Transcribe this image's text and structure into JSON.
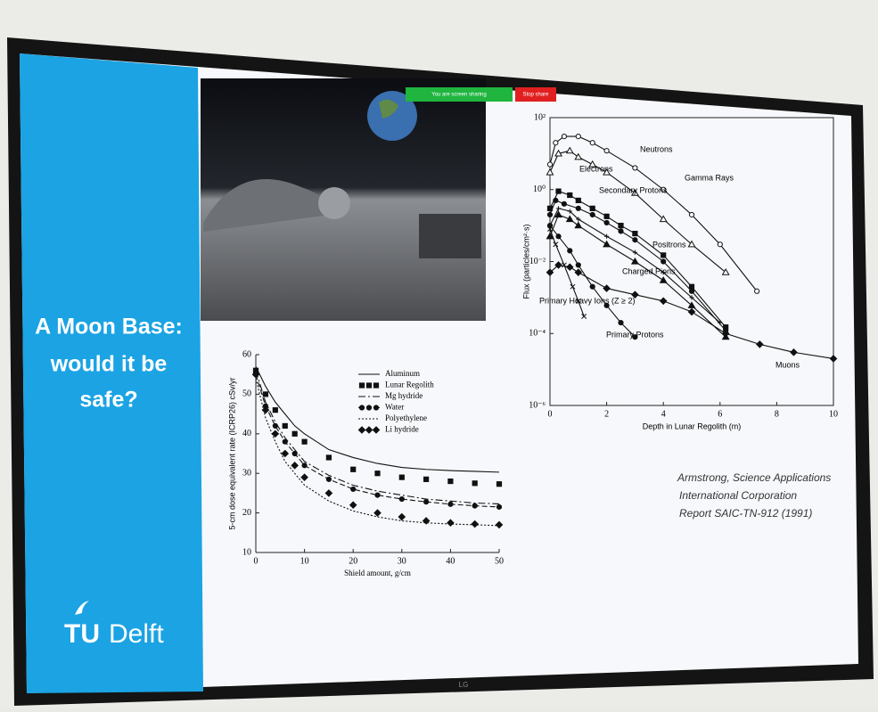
{
  "slide": {
    "title_lines": [
      "A Moon Base:",
      "would it be",
      "safe?"
    ],
    "logo": {
      "tu": "TU",
      "delft": "Delft"
    },
    "citation_lines": [
      "Armstrong, Science Applications",
      "International Corporation",
      "Report SAIC-TN-912 (1991)"
    ],
    "share_bar": {
      "status": "You are screen sharing",
      "stop": "Stop share"
    },
    "tv_brand": "LG"
  },
  "chart_data": [
    {
      "type": "line",
      "ylabel": "5-cm dose equivalent rate (ICRP26) cSv/yr",
      "xlabel": "Shield amount, g/cm",
      "x": [
        0,
        2,
        4,
        6,
        8,
        10,
        15,
        20,
        25,
        30,
        35,
        40,
        45,
        50
      ],
      "xlim": [
        0,
        50
      ],
      "xticks": [
        0,
        10,
        20,
        30,
        40,
        50
      ],
      "ylim": [
        10,
        60
      ],
      "yticks": [
        10,
        20,
        30,
        40,
        50,
        60
      ],
      "series": [
        {
          "name": "Aluminum",
          "color": "#111111",
          "dash": "solid",
          "marker": "none",
          "values": [
            57,
            52,
            48,
            45,
            42,
            40,
            36,
            34,
            32.5,
            31.5,
            31,
            30.7,
            30.5,
            30.3
          ]
        },
        {
          "name": "Lunar Regolith",
          "color": "#111111",
          "dash": "none",
          "marker": "square",
          "values": [
            56,
            50,
            46,
            42,
            40,
            38,
            34,
            31,
            30,
            29,
            28.5,
            28,
            27.5,
            27.3
          ]
        },
        {
          "name": "Mg hydride",
          "color": "#111111",
          "dash": "dashdot",
          "marker": "none",
          "values": [
            56,
            48,
            43,
            39,
            36,
            33,
            29.5,
            27,
            25.5,
            24.5,
            23.5,
            23,
            22.5,
            22.3
          ]
        },
        {
          "name": "Water",
          "color": "#111111",
          "dash": "dashed",
          "marker": "circle",
          "values": [
            55,
            47,
            42,
            38,
            35,
            32,
            28.5,
            26,
            24.5,
            23.5,
            22.8,
            22.2,
            21.8,
            21.5
          ]
        },
        {
          "name": "Polyethylene",
          "color": "#111111",
          "dash": "dotted",
          "marker": "none",
          "values": [
            54,
            44,
            38,
            33,
            30,
            27,
            23,
            20.5,
            19,
            18,
            17.5,
            17.2,
            17,
            16.8
          ]
        },
        {
          "name": "Li hydride",
          "color": "#111111",
          "dash": "none",
          "marker": "diamond",
          "values": [
            55,
            46,
            40,
            35,
            32,
            29,
            25,
            22,
            20,
            19,
            18,
            17.5,
            17.2,
            17
          ]
        }
      ]
    },
    {
      "type": "line",
      "log_y": true,
      "ylabel": "Flux (particles/cm²·s)",
      "xlabel": "Depth in Lunar Regolith (m)",
      "xlim": [
        0,
        10
      ],
      "xticks": [
        0,
        2,
        4,
        6,
        8,
        10
      ],
      "ylim": [
        1e-06,
        100
      ],
      "yticks": [
        {
          "value": 100,
          "label": "10²"
        },
        {
          "value": 1,
          "label": "10⁰"
        },
        {
          "value": 0.01,
          "label": "10⁻²"
        },
        {
          "value": 0.0001,
          "label": "10⁻⁴"
        },
        {
          "value": 1e-06,
          "label": "10⁻⁶"
        }
      ],
      "series": [
        {
          "name": "Neutrons",
          "color": "#111111",
          "marker": "circle-open",
          "x": [
            0,
            0.2,
            0.5,
            1,
            1.5,
            2,
            3,
            4,
            5,
            6,
            7.3
          ],
          "values": [
            5,
            20,
            30,
            30,
            20,
            12,
            4,
            1,
            0.2,
            0.03,
            0.0015
          ]
        },
        {
          "name": "Gamma Rays",
          "color": "#111111",
          "marker": "triangle-open",
          "x": [
            0,
            0.3,
            0.7,
            1,
            1.5,
            2,
            3,
            4,
            5,
            6.2
          ],
          "values": [
            3,
            10,
            12,
            8,
            5,
            3,
            0.8,
            0.15,
            0.03,
            0.005
          ]
        },
        {
          "name": "Electrons",
          "color": "#111111",
          "marker": "square",
          "x": [
            0,
            0.3,
            0.7,
            1,
            1.5,
            2,
            2.5,
            3,
            4,
            5,
            6.2
          ],
          "values": [
            0.3,
            0.9,
            0.7,
            0.5,
            0.3,
            0.18,
            0.1,
            0.06,
            0.015,
            0.002,
            0.00015
          ]
        },
        {
          "name": "Secondary Protons",
          "color": "#111111",
          "marker": "circle",
          "x": [
            0,
            0.2,
            0.5,
            1,
            1.5,
            2,
            2.5,
            3,
            4,
            5,
            6.2
          ],
          "values": [
            0.2,
            0.5,
            0.4,
            0.3,
            0.2,
            0.12,
            0.07,
            0.04,
            0.01,
            0.0015,
            0.00012
          ]
        },
        {
          "name": "Positrons",
          "color": "#111111",
          "marker": "plus",
          "x": [
            0,
            0.3,
            0.7,
            1,
            2,
            3,
            4,
            5,
            6
          ],
          "values": [
            0.1,
            0.3,
            0.25,
            0.15,
            0.05,
            0.018,
            0.005,
            0.001,
            0.0002
          ]
        },
        {
          "name": "Charged Pions",
          "color": "#111111",
          "marker": "triangle",
          "x": [
            0,
            0.3,
            0.7,
            1,
            2,
            3,
            4,
            5,
            6.2
          ],
          "values": [
            0.05,
            0.2,
            0.15,
            0.1,
            0.03,
            0.01,
            0.003,
            0.0006,
            8e-05
          ]
        },
        {
          "name": "Primary Heavy Ions (Z ≥ 2)",
          "color": "#111111",
          "marker": "x",
          "x": [
            0,
            0.2,
            0.5,
            0.8,
            1,
            1.2
          ],
          "values": [
            0.08,
            0.03,
            0.008,
            0.002,
            0.0008,
            0.0003
          ]
        },
        {
          "name": "Primary Protons",
          "color": "#111111",
          "marker": "circle",
          "x": [
            0,
            0.3,
            0.7,
            1,
            1.5,
            2,
            2.5,
            3
          ],
          "values": [
            0.1,
            0.05,
            0.02,
            0.008,
            0.002,
            0.0006,
            0.0002,
            8e-05
          ]
        },
        {
          "name": "Muons",
          "color": "#111111",
          "marker": "diamond",
          "x": [
            0,
            0.3,
            0.7,
            1,
            2,
            3,
            4,
            5,
            6.2,
            7.4,
            8.6,
            10
          ],
          "values": [
            0.005,
            0.008,
            0.007,
            0.005,
            0.0018,
            0.0012,
            0.0008,
            0.0004,
            0.0001,
            5e-05,
            3e-05,
            2e-05
          ]
        }
      ]
    }
  ]
}
